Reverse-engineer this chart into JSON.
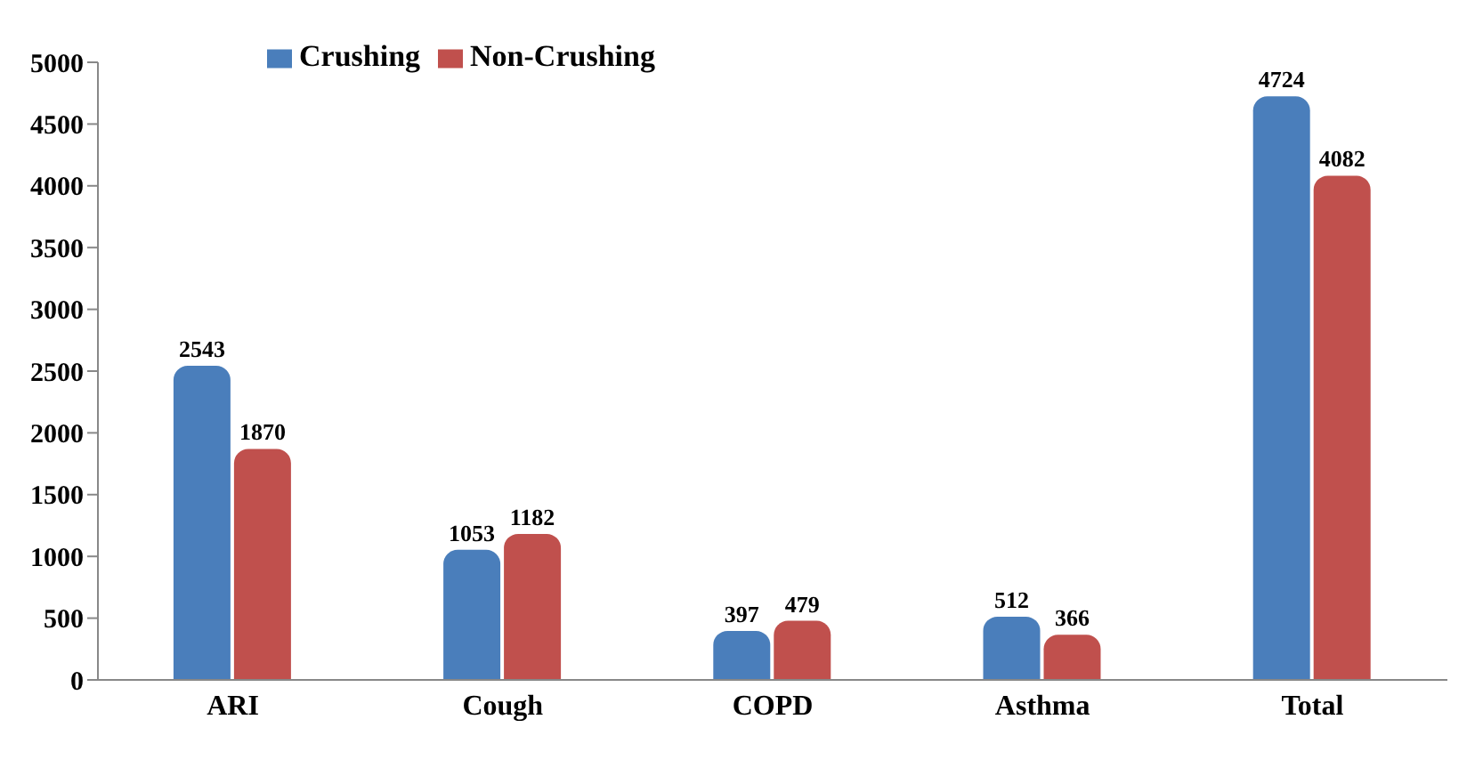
{
  "chart_data": {
    "type": "bar",
    "categories": [
      "ARI",
      "Cough",
      "COPD",
      "Asthma",
      "Total"
    ],
    "series": [
      {
        "name": "Crushing",
        "color": "#4a7ebb",
        "values": [
          2543,
          1053,
          397,
          512,
          4724
        ]
      },
      {
        "name": "Non-Crushing",
        "color": "#c0504d",
        "values": [
          1870,
          1182,
          479,
          366,
          4082
        ]
      }
    ],
    "ylim": [
      0,
      5000
    ],
    "yticks": [
      0,
      500,
      1000,
      1500,
      2000,
      2500,
      3000,
      3500,
      4000,
      4500,
      5000
    ],
    "legend": "top left",
    "data_labels": true
  }
}
